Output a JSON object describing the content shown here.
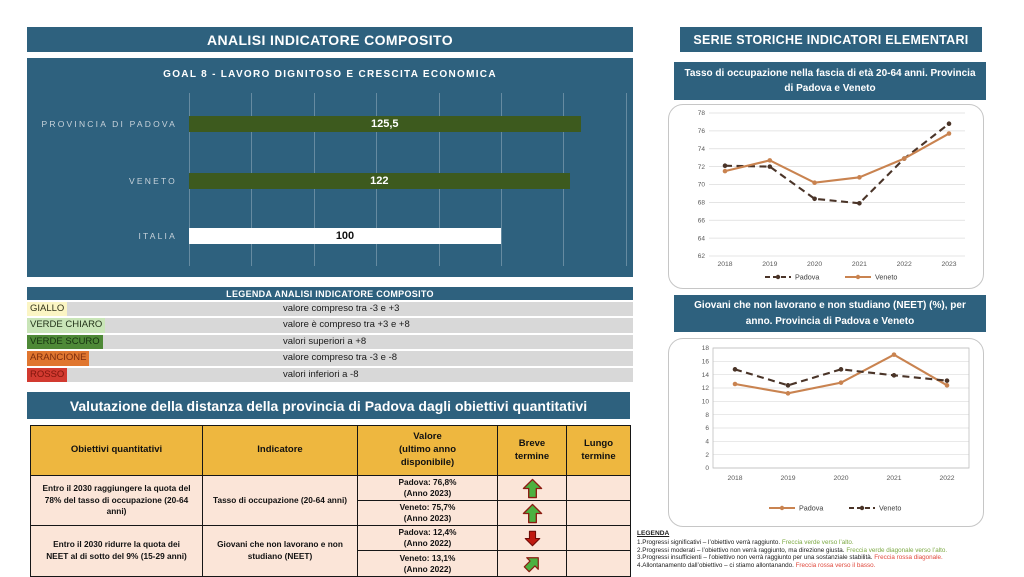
{
  "left_column": {
    "header": "ANALISI INDICATORE COMPOSITO",
    "legend": {
      "header": "LEGENDA ANALISI INDICATORE COMPOSITO",
      "rows": [
        {
          "label": "GIALLO",
          "chip_bg": "#FBF5C4",
          "chip_text": "#33331a",
          "description": "valore compreso tra -3 e +3"
        },
        {
          "label": "VERDE CHIARO",
          "chip_bg": "#C9E5B8",
          "chip_text": "#23331a",
          "description": "valore è compreso tra +3 e +8"
        },
        {
          "label": "VERDE SCURO",
          "chip_bg": "#4E8937",
          "chip_text": "#173311",
          "description": "valori superiori a +8"
        },
        {
          "label": "ARANCIONE",
          "chip_bg": "#E0762F",
          "chip_text": "#7C2D0E",
          "description": "valore compreso tra -3 e -8"
        },
        {
          "label": "ROSSO",
          "chip_bg": "#D23A30",
          "chip_text": "#7E150C",
          "description": "valori inferiori a -8"
        }
      ]
    },
    "assessment": {
      "header": "Valutazione della distanza della provincia di Padova dagli obiettivi quantitativi",
      "columns": [
        "Obiettivi quantitativi",
        "Indicatore",
        "Valore\n(ultimo anno\ndisponibile)",
        "Breve\ntermine",
        "Lungo\ntermine"
      ],
      "rows": [
        {
          "objective": "Entro il 2030 raggiungere la quota del 78% del tasso di occupazione (20-64 anni)",
          "indicator": "Tasso di occupazione (20-64 anni)",
          "sub_rows": [
            {
              "value": "Padova: 76,8%",
              "year": "(Anno 2023)",
              "short_term_arrow": "up-green",
              "long_term": ""
            },
            {
              "value": "Veneto: 75,7%",
              "year": "(Anno 2023)",
              "short_term_arrow": "up-green",
              "long_term": ""
            }
          ]
        },
        {
          "objective": "Entro il 2030 ridurre la quota dei NEET al di sotto del 9% (15-29 anni)",
          "indicator": "Giovani che non lavorano e non studiano (NEET)",
          "sub_rows": [
            {
              "value": "Padova: 12,4%",
              "year": "(Anno 2022)",
              "short_term_arrow": "down-red",
              "long_term": ""
            },
            {
              "value": "Veneto: 13,1%",
              "year": "(Anno 2022)",
              "short_term_arrow": "diagonal-green",
              "long_term": ""
            }
          ]
        }
      ]
    }
  },
  "right_column": {
    "header": "SERIE STORICHE INDICATORI ELEMENTARI",
    "legenda": {
      "title": "LEGENDA",
      "items": [
        {
          "text": "1.Progressi significativi – l’obiettivo verrà raggiunto.",
          "note": "Freccia verde verso l’alto.",
          "note_color": "#7BA842"
        },
        {
          "text": "2.Progressi moderati – l’obiettivo non verrà raggiunto, ma direzione giusta.",
          "note": "Freccia verde diagonale verso l’alto.",
          "note_color": "#7BA842"
        },
        {
          "text": "3.Progressi insufficienti – l’obiettivo non verrà raggiunto per una sostanziale stabilità.",
          "note": "Freccia rossa diagonale.",
          "note_color": "#E0483C"
        },
        {
          "text": "4.Allontanamento dall’obiettivo – ci stiamo allontanando.",
          "note": "Freccia rossa verso il basso.",
          "note_color": "#E0483C"
        }
      ]
    }
  },
  "colors": {
    "header_blue": "#2E617E",
    "dark_green_bar": "#3D5A1E",
    "table_gold": "#EEB73F",
    "table_peach": "#FBE5D8",
    "padova_line_dark": "#4A3428",
    "veneto_line_orange": "#C98350"
  },
  "chart_data": [
    {
      "type": "bar",
      "orientation": "horizontal",
      "title": "GOAL 8 - LAVORO DIGNITOSO E CRESCITA ECONOMICA",
      "bars": [
        {
          "label": "PROVINCIA DI PADOVA",
          "value": 125.5,
          "display": "125,5",
          "color": "#3D5A1E",
          "text_color": "#ffffff"
        },
        {
          "label": "VENETO",
          "value": 122,
          "display": "122",
          "color": "#3D5A1E",
          "text_color": "#ffffff"
        },
        {
          "label": "ITALIA",
          "value": 100,
          "display": "100",
          "color": "#FFFFFF",
          "text_color": "#111111"
        }
      ],
      "xlim": [
        0,
        140
      ],
      "gridline_step": 20,
      "grid": true,
      "legend_position": "none"
    },
    {
      "type": "line",
      "title": "Tasso di occupazione nella fascia di età 20-64 anni. Provincia di Padova e Veneto",
      "x": [
        "2018",
        "2019",
        "2020",
        "2021",
        "2022",
        "2023"
      ],
      "series": [
        {
          "name": "Padova",
          "values": [
            72.1,
            72.0,
            68.4,
            67.9,
            72.9,
            76.8
          ],
          "color": "#4A3428",
          "dash": true
        },
        {
          "name": "Veneto",
          "values": [
            71.5,
            72.7,
            70.2,
            70.8,
            72.9,
            75.7
          ],
          "color": "#C98350",
          "dash": false
        }
      ],
      "ylim": [
        62,
        78
      ],
      "ytick_step": 2,
      "grid": true,
      "plot_border": false,
      "legend_position": "bottom"
    },
    {
      "type": "line",
      "title": "Giovani che non lavorano e non studiano (NEET) (%), per anno. Provincia di Padova e Veneto",
      "x": [
        "2018",
        "2019",
        "2020",
        "2021",
        "2022"
      ],
      "series": [
        {
          "name": "Padova",
          "values": [
            12.6,
            11.2,
            12.8,
            17.0,
            12.4
          ],
          "color": "#C98350",
          "dash": false
        },
        {
          "name": "Veneto",
          "values": [
            14.8,
            12.4,
            14.8,
            13.9,
            13.1
          ],
          "color": "#4A3428",
          "dash": true
        }
      ],
      "ylim": [
        0,
        18
      ],
      "ytick_step": 2,
      "grid": true,
      "plot_border": true,
      "legend_position": "bottom"
    }
  ]
}
